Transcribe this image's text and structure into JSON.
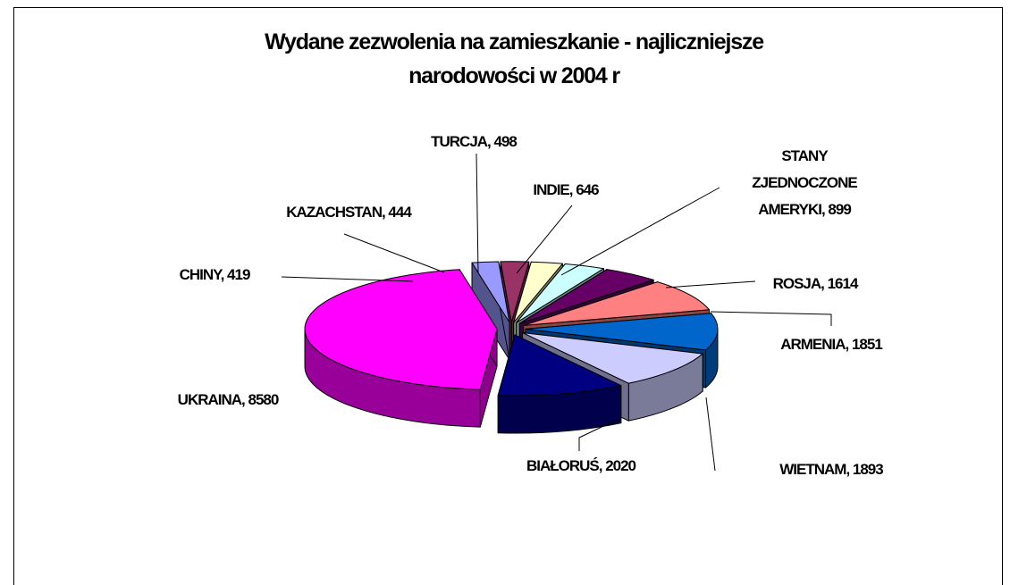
{
  "chart_data": {
    "type": "pie3d",
    "title": "Wydane zezwolenia na zamieszkanie - najliczniejsze narodowości w 2004 r",
    "values": [
      8580,
      419,
      444,
      498,
      646,
      899,
      1614,
      1851,
      1893,
      2020
    ],
    "value_labels": [
      "UKRAINA, 8580",
      "CHINY, 419",
      "KAZACHSTAN, 444",
      "TURCJA, 498",
      "INDIE, 646",
      "STANY ZJEDNOCZONE AMERYKI, 899",
      "ROSJA, 1614",
      "ARMENIA, 1851",
      "WIETNAM, 1893",
      "BIAŁORUŚ, 2020"
    ],
    "colors": [
      "#ff00ff",
      "#9999ff",
      "#993366",
      "#ffffcc",
      "#ccffff",
      "#660066",
      "#ff8080",
      "#0066cc",
      "#ccccff",
      "#000080"
    ]
  }
}
